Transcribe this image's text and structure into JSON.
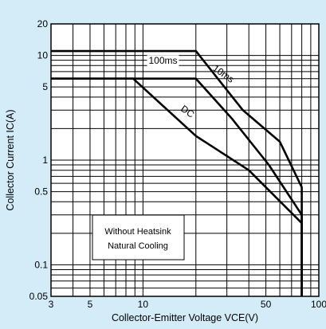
{
  "chart_data": {
    "type": "line",
    "xscale": "log",
    "yscale": "log",
    "xlim": [
      3,
      100
    ],
    "ylim": [
      0.05,
      20
    ],
    "xlabel": "Collector-Emitter Voltage VCE(V)",
    "ylabel": "Collector Current IC(A)",
    "x_ticks": [
      {
        "v": 3,
        "label": "3"
      },
      {
        "v": 5,
        "label": "5"
      },
      {
        "v": 10,
        "label": "10"
      },
      {
        "v": 50,
        "label": "50"
      },
      {
        "v": 100,
        "label": "100"
      }
    ],
    "y_ticks": [
      {
        "v": 0.05,
        "label": "0.05"
      },
      {
        "v": 0.1,
        "label": "0.1"
      },
      {
        "v": 0.5,
        "label": "0.5"
      },
      {
        "v": 1,
        "label": "1"
      },
      {
        "v": 5,
        "label": "5"
      },
      {
        "v": 10,
        "label": "10"
      },
      {
        "v": 20,
        "label": "20"
      }
    ],
    "grid": true,
    "series": [
      {
        "name": "10ms",
        "x": [
          3,
          20,
          37,
          60,
          80,
          80
        ],
        "y": [
          11,
          11,
          3,
          1.5,
          0.55,
          0.05
        ]
      },
      {
        "name": "100ms",
        "x": [
          3,
          20,
          32,
          52,
          80,
          80
        ],
        "y": [
          6,
          6,
          2.5,
          0.9,
          0.3,
          0.05
        ]
      },
      {
        "name": "DC",
        "x": [
          3,
          8.8,
          20,
          40,
          80,
          80
        ],
        "y": [
          6,
          6,
          1.7,
          0.8,
          0.25,
          0.05
        ]
      }
    ],
    "series_labels": [
      {
        "text": "100ms",
        "x": 13,
        "y": 8.3,
        "rotate": 0
      },
      {
        "text": "10ms",
        "x": 28,
        "y": 6.3,
        "rotate": 35
      },
      {
        "text": "DC",
        "x": 17.5,
        "y": 2.75,
        "rotate": 35
      }
    ],
    "annotation": {
      "lines": [
        "Without Heatsink",
        "Natural Cooling"
      ]
    }
  }
}
